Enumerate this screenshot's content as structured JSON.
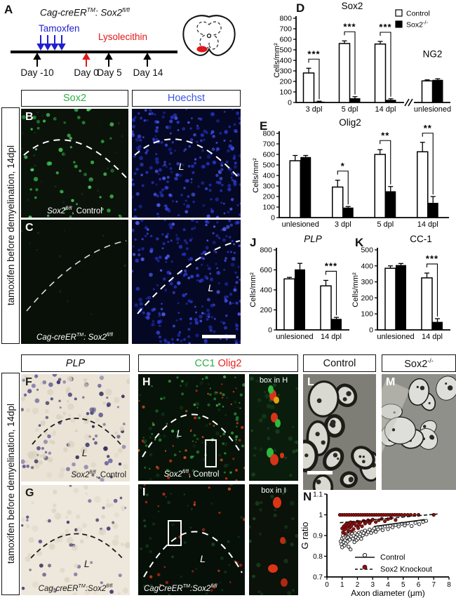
{
  "figure": {
    "panel_letters": {
      "a": "A",
      "b": "B",
      "c": "C",
      "d": "D",
      "e": "E",
      "f": "F",
      "g": "G",
      "h": "H",
      "i": "I",
      "j": "J",
      "k": "K",
      "l": "L",
      "m": "M",
      "n": "N"
    },
    "panel_a": {
      "title": [
        "Cag-creER",
        "TM",
        ": Sox2",
        "fl/fl"
      ],
      "tamoxifen": "Tamoxfen",
      "lysolecithin": "Lysolecithin",
      "days": [
        "Day -10",
        "Day 0",
        "Day 5",
        "Day 14"
      ]
    },
    "sidebars": {
      "top": "tamoxifen before demyelination, 14dpl",
      "bottom": "tamoxifen before demyelination, 14dpl"
    },
    "headers": {
      "sox2": "Sox2",
      "hoechst": "Hoechst",
      "plp": "PLP",
      "cc1": "CC1",
      "olig2": "Olig2",
      "control": "Control",
      "sox2ko": [
        "Sox2",
        "-/-"
      ]
    },
    "captions": {
      "b": [
        "Sox2",
        "fl/fl",
        ", Control"
      ],
      "c": [
        "Cag-creER",
        "TM",
        ": Sox2",
        "fl/fl"
      ],
      "f": [
        "Sox2",
        "fl/fl",
        ", Control"
      ],
      "g": [
        "Cag-creER",
        "TM",
        ":Sox2",
        "fl/fl"
      ],
      "h": [
        "Sox2",
        "fl/fl",
        ", Control"
      ],
      "i": [
        "CagCreER",
        "TM",
        ":Sox2",
        "fl/fl"
      ]
    },
    "inset_labels": {
      "h": "box in H",
      "i": "box in I"
    },
    "lesion_letter": "L",
    "colors": {
      "green": "#2fae4a",
      "blue": "#3a57e8",
      "red": "#e8221c",
      "tamoxifen_blue": "#1f1fd0",
      "lysolecithin_red": "#e01818",
      "dark_red": "#8e1212"
    }
  },
  "chart_data": [
    {
      "panel": "D",
      "type": "bar",
      "title": "Sox2",
      "ylabel": "Cells/mm²",
      "ylim": [
        0,
        800
      ],
      "ystep": 100,
      "categories": [
        "3 dpl",
        "5 dpl",
        "14 dpl",
        "unlesioned"
      ],
      "series": [
        {
          "name": "Control",
          "values": [
            280,
            560,
            555,
            205
          ],
          "err": [
            45,
            25,
            25,
            10
          ]
        },
        {
          "name": "Sox2-/-",
          "values": [
            8,
            40,
            25,
            215
          ],
          "err": [
            4,
            15,
            10,
            10
          ]
        }
      ],
      "sig": [
        "***",
        "***",
        "***",
        null
      ],
      "axis_break_before": 3,
      "annotation": {
        "text": "NG2",
        "group": 3,
        "y": 430
      },
      "legend": [
        [
          "Control",
          ""
        ],
        [
          "Sox2",
          "-/-"
        ]
      ]
    },
    {
      "panel": "E",
      "type": "bar",
      "title": "Olig2",
      "ylabel": "Cells/mm²",
      "ylim": [
        0,
        800
      ],
      "ystep": 100,
      "categories": [
        "unlesioned",
        "3 dpl",
        "5 dpl",
        "14 dpl"
      ],
      "series": [
        {
          "name": "Control",
          "values": [
            540,
            290,
            600,
            625
          ],
          "err": [
            50,
            65,
            45,
            90
          ]
        },
        {
          "name": "Sox2-/-",
          "values": [
            575,
            95,
            250,
            140
          ],
          "err": [
            15,
            10,
            45,
            60
          ]
        }
      ],
      "sig": [
        null,
        "*",
        "**",
        "**"
      ]
    },
    {
      "panel": "J",
      "type": "bar",
      "title": "PLP",
      "title_italic": true,
      "ylabel": "Cells/mm²",
      "ylim": [
        0,
        800
      ],
      "ystep": 200,
      "categories": [
        "unlesioned",
        "14 dpl"
      ],
      "series": [
        {
          "name": "Control",
          "values": [
            510,
            440
          ],
          "err": [
            15,
            55
          ]
        },
        {
          "name": "Sox2-/-",
          "values": [
            605,
            110
          ],
          "err": [
            60,
            15
          ]
        }
      ],
      "sig": [
        null,
        "***"
      ]
    },
    {
      "panel": "K",
      "type": "bar",
      "title": "CC-1",
      "ylabel": "Cells/mm²",
      "ylim": [
        0,
        500
      ],
      "ystep": 100,
      "categories": [
        "unlesioned",
        "14 dpl"
      ],
      "series": [
        {
          "name": "Control",
          "values": [
            385,
            325
          ],
          "err": [
            15,
            30
          ]
        },
        {
          "name": "Sox2-/-",
          "values": [
            405,
            50
          ],
          "err": [
            10,
            20
          ]
        }
      ],
      "sig": [
        null,
        "***"
      ]
    },
    {
      "panel": "N",
      "type": "scatter",
      "xlabel": "Axon diameter (μm)",
      "ylabel": "G ratio",
      "xlim": [
        0,
        8
      ],
      "xstep": 1,
      "ylim": [
        0.7,
        1.1
      ],
      "ystep": 0.1,
      "legend": [
        [
          "Control",
          "open",
          "solid"
        ],
        [
          "Sox2 Knockout",
          "filled",
          "dashed"
        ]
      ],
      "series": [
        {
          "name": "Control",
          "marker": "open",
          "line": "solid",
          "fit": [
            [
              3.1,
              0.944
            ],
            [
              6.4,
              0.977
            ]
          ],
          "points": [
            [
              0.9,
              0.872
            ],
            [
              0.95,
              0.858
            ],
            [
              1.0,
              0.886
            ],
            [
              1.0,
              0.843
            ],
            [
              1.05,
              0.9
            ],
            [
              1.1,
              0.868
            ],
            [
              1.12,
              0.89
            ],
            [
              1.15,
              0.852
            ],
            [
              1.2,
              0.878
            ],
            [
              1.22,
              0.899
            ],
            [
              1.25,
              0.862
            ],
            [
              1.3,
              0.888
            ],
            [
              1.32,
              0.907
            ],
            [
              1.35,
              0.871
            ],
            [
              1.4,
              0.892
            ],
            [
              1.42,
              0.846
            ],
            [
              1.45,
              0.905
            ],
            [
              1.5,
              0.88
            ],
            [
              1.52,
              0.899
            ],
            [
              1.55,
              0.833
            ],
            [
              1.6,
              0.895
            ],
            [
              1.65,
              0.909
            ],
            [
              1.7,
              0.885
            ],
            [
              1.75,
              0.9
            ],
            [
              1.8,
              0.868
            ],
            [
              1.85,
              0.911
            ],
            [
              1.9,
              0.892
            ],
            [
              1.95,
              0.878
            ],
            [
              2.0,
              0.904
            ],
            [
              2.05,
              0.886
            ],
            [
              2.1,
              0.914
            ],
            [
              2.15,
              0.896
            ],
            [
              2.2,
              0.907
            ],
            [
              2.25,
              0.884
            ],
            [
              2.3,
              0.919
            ],
            [
              2.35,
              0.901
            ],
            [
              2.4,
              0.912
            ],
            [
              2.5,
              0.924
            ],
            [
              2.6,
              0.906
            ],
            [
              2.7,
              0.917
            ],
            [
              2.8,
              0.929
            ],
            [
              2.9,
              0.913
            ],
            [
              3.0,
              0.924
            ],
            [
              3.1,
              0.934
            ],
            [
              3.2,
              0.918
            ],
            [
              3.35,
              0.93
            ],
            [
              3.5,
              0.939
            ],
            [
              3.65,
              0.926
            ],
            [
              3.8,
              0.944
            ],
            [
              4.0,
              0.931
            ],
            [
              4.15,
              0.947
            ],
            [
              4.3,
              0.94
            ],
            [
              4.5,
              0.951
            ],
            [
              4.7,
              0.944
            ],
            [
              4.9,
              0.957
            ],
            [
              5.1,
              0.949
            ],
            [
              5.3,
              0.959
            ],
            [
              5.55,
              0.946
            ],
            [
              5.8,
              0.961
            ],
            [
              6.05,
              0.955
            ],
            [
              6.3,
              0.966
            ],
            [
              6.5,
              0.971
            ]
          ]
        },
        {
          "name": "Sox2 Knockout",
          "marker": "filled",
          "line": "dashed",
          "fit": [
            [
              0.85,
              0.962
            ],
            [
              7.25,
              1.004
            ]
          ],
          "points": [
            [
              0.85,
              1.0
            ],
            [
              1.0,
              1.0
            ],
            [
              1.15,
              1.0
            ],
            [
              1.3,
              1.0
            ],
            [
              1.45,
              1.0
            ],
            [
              1.6,
              1.0
            ],
            [
              1.75,
              1.0
            ],
            [
              1.9,
              1.0
            ],
            [
              2.05,
              1.0
            ],
            [
              2.2,
              1.0
            ],
            [
              2.35,
              1.0
            ],
            [
              2.5,
              1.0
            ],
            [
              2.65,
              1.0
            ],
            [
              2.8,
              1.0
            ],
            [
              2.95,
              1.0
            ],
            [
              3.1,
              1.0
            ],
            [
              3.25,
              1.0
            ],
            [
              3.4,
              1.0
            ],
            [
              3.55,
              1.0
            ],
            [
              3.7,
              1.0
            ],
            [
              3.85,
              1.0
            ],
            [
              4.0,
              1.0
            ],
            [
              4.15,
              1.0
            ],
            [
              4.3,
              1.0
            ],
            [
              4.45,
              1.0
            ],
            [
              4.6,
              1.0
            ],
            [
              4.75,
              1.0
            ],
            [
              4.9,
              1.0
            ],
            [
              5.1,
              1.0
            ],
            [
              5.3,
              1.0
            ],
            [
              5.5,
              1.0
            ],
            [
              5.75,
              1.0
            ],
            [
              6.0,
              1.0
            ],
            [
              7.0,
              1.0
            ],
            [
              1.0,
              0.934
            ],
            [
              1.05,
              0.915
            ],
            [
              1.1,
              0.944
            ],
            [
              1.15,
              0.928
            ],
            [
              1.2,
              0.951
            ],
            [
              1.25,
              0.936
            ],
            [
              1.3,
              0.959
            ],
            [
              1.35,
              0.941
            ],
            [
              1.4,
              0.922
            ],
            [
              1.45,
              0.954
            ],
            [
              1.5,
              0.938
            ],
            [
              1.55,
              0.964
            ],
            [
              1.6,
              0.946
            ],
            [
              1.7,
              0.957
            ],
            [
              1.75,
              0.931
            ],
            [
              1.8,
              0.961
            ],
            [
              1.9,
              0.948
            ],
            [
              2.0,
              0.967
            ],
            [
              2.1,
              0.952
            ],
            [
              2.2,
              0.964
            ],
            [
              2.3,
              0.945
            ],
            [
              2.4,
              0.971
            ],
            [
              2.5,
              0.958
            ],
            [
              2.6,
              0.967
            ],
            [
              2.7,
              0.974
            ],
            [
              2.8,
              0.96
            ],
            [
              2.9,
              0.971
            ],
            [
              3.0,
              0.977
            ],
            [
              3.2,
              0.965
            ],
            [
              3.4,
              0.974
            ],
            [
              3.6,
              0.981
            ],
            [
              3.8,
              0.969
            ],
            [
              4.0,
              0.979
            ],
            [
              4.2,
              0.984
            ],
            [
              4.5,
              0.975
            ],
            [
              1.2,
              0.908
            ],
            [
              1.62,
              0.921
            ],
            [
              2.05,
              0.936
            ]
          ]
        }
      ]
    }
  ]
}
